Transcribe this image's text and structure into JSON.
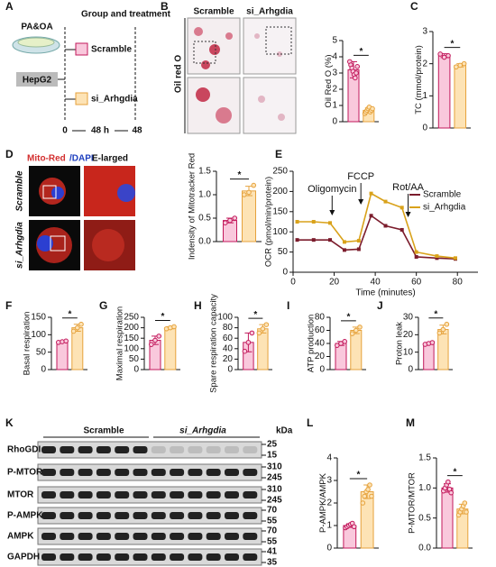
{
  "panels": [
    "A",
    "B",
    "C",
    "D",
    "E",
    "F",
    "G",
    "H",
    "I",
    "J",
    "K",
    "L",
    "M"
  ],
  "schematic": {
    "treatment": "PA&OA",
    "cells": "HepG2",
    "title": "Group and treatment",
    "groups": [
      "Scramble",
      "si_Arhgdia"
    ],
    "timeline": [
      "0",
      "48 h",
      "48"
    ]
  },
  "images_b": {
    "columns": [
      "Scramble",
      "si_Arhgdia"
    ],
    "stain": "Oil red O"
  },
  "images_d": {
    "stains": [
      "Mito-Red",
      "/DAPI"
    ],
    "zoom": "E-larged",
    "rows": [
      "Scramble",
      "si_Arhgdia"
    ]
  },
  "blot": {
    "groups": [
      "Scramble",
      "si_Arhgdia"
    ],
    "unit": "kDa",
    "rows": [
      {
        "label": "RhoGDI",
        "kda": [
          "25",
          "15"
        ]
      },
      {
        "label": "P-MTOR",
        "kda": [
          "310",
          "245"
        ]
      },
      {
        "label": "MTOR",
        "kda": [
          "310",
          "245"
        ]
      },
      {
        "label": "P-AMPK",
        "kda": [
          "70",
          "55"
        ]
      },
      {
        "label": "AMPK",
        "kda": [
          "70",
          "55"
        ]
      },
      {
        "label": "GAPDH",
        "kda": [
          "41",
          "35"
        ]
      }
    ]
  },
  "chart_data": [
    {
      "type": "bar",
      "ylabel": "Oil Red O (%)",
      "ylim": [
        0,
        5
      ],
      "yticks": [
        0,
        1,
        2,
        3,
        4,
        5
      ],
      "values": [
        3.2,
        0.7
      ],
      "errors": [
        0.5,
        0.15
      ],
      "points": [
        [
          3.7,
          3.5,
          3.3,
          3.1,
          2.9,
          2.7,
          3.0,
          3.4
        ],
        [
          0.5,
          0.6,
          0.7,
          0.8,
          0.9,
          0.6,
          0.7,
          0.8
        ]
      ],
      "colors": [
        "#f9c8dc",
        "#fde3b5"
      ],
      "edge_colors": [
        "#c2185b",
        "#e6a23c"
      ],
      "annotation": "*"
    },
    {
      "type": "bar",
      "ylabel": "TC (mmol/protein)",
      "ylim": [
        0,
        3
      ],
      "yticks": [
        0,
        1,
        2,
        3
      ],
      "values": [
        2.25,
        1.95
      ],
      "errors": [
        0.06,
        0.05
      ],
      "points": [
        [
          2.3,
          2.2,
          2.25
        ],
        [
          1.9,
          1.95,
          2.0
        ]
      ],
      "colors": [
        "#f9c8dc",
        "#fde3b5"
      ],
      "edge_colors": [
        "#c2185b",
        "#e6a23c"
      ],
      "annotation": "*"
    },
    {
      "type": "bar",
      "ylabel": "Indensity of Mitotracker Red",
      "ylim": [
        0,
        1.5
      ],
      "yticks": [
        {
          "value": 0,
          "label": "0.0"
        },
        0.5,
        {
          "value": 1,
          "label": "1.0"
        },
        1.5
      ],
      "values": [
        0.45,
        1.08
      ],
      "errors": [
        0.05,
        0.1
      ],
      "points": [
        [
          0.4,
          0.45,
          0.5
        ],
        [
          1.0,
          1.05,
          1.2
        ]
      ],
      "colors": [
        "#f9c8dc",
        "#fde3b5"
      ],
      "edge_colors": [
        "#c2185b",
        "#e6a23c"
      ],
      "annotation": "*"
    },
    {
      "type": "line",
      "ylabel": "OCR (pmol/min/protein)",
      "xlabel": "Time (minutes)",
      "xlim": [
        0,
        90
      ],
      "xticks": [
        0,
        20,
        40,
        60,
        80
      ],
      "ylim": [
        0,
        250
      ],
      "yticks": [
        0,
        50,
        100,
        150,
        200,
        250
      ],
      "x": [
        2,
        10,
        18,
        25,
        32,
        38,
        45,
        53,
        60,
        70,
        79
      ],
      "series": [
        {
          "name": "Scramble",
          "color": "#7b1c2c",
          "values": [
            80,
            80,
            80,
            55,
            57,
            140,
            115,
            105,
            38,
            35,
            33
          ]
        },
        {
          "name": "si_Arhgdia",
          "color": "#d9a21b",
          "values": [
            125,
            125,
            122,
            75,
            78,
            195,
            175,
            160,
            50,
            40,
            35
          ]
        }
      ],
      "annotations": [
        {
          "text": "Oligomycin",
          "x": 19
        },
        {
          "text": "FCCP",
          "x": 33
        },
        {
          "text": "Rot/AA",
          "x": 56
        }
      ],
      "legend": "upper right"
    },
    {
      "type": "bar",
      "ylabel": "Basal respiration",
      "ylim": [
        0,
        150
      ],
      "yticks": [
        0,
        50,
        100,
        150
      ],
      "values": [
        80,
        120
      ],
      "errors": [
        2,
        10
      ],
      "points": [
        [
          78,
          80,
          82
        ],
        [
          110,
          120,
          130
        ]
      ],
      "colors": [
        "#f9c8dc",
        "#fde3b5"
      ],
      "edge_colors": [
        "#c2185b",
        "#e6a23c"
      ],
      "annotation": "*"
    },
    {
      "type": "bar",
      "ylabel": "Maximal respiration",
      "ylim": [
        0,
        250
      ],
      "yticks": [
        0,
        50,
        100,
        150,
        200,
        250
      ],
      "values": [
        140,
        200
      ],
      "errors": [
        20,
        5
      ],
      "points": [
        [
          120,
          140,
          160
        ],
        [
          195,
          200,
          205
        ]
      ],
      "colors": [
        "#f9c8dc",
        "#fde3b5"
      ],
      "edge_colors": [
        "#c2185b",
        "#e6a23c"
      ],
      "annotation": "*"
    },
    {
      "type": "bar",
      "ylabel": "Spare respiration capacity",
      "ylim": [
        0,
        100
      ],
      "yticks": [
        0,
        20,
        40,
        60,
        80,
        100
      ],
      "values": [
        52,
        78
      ],
      "errors": [
        18,
        8
      ],
      "points": [
        [
          35,
          52,
          70
        ],
        [
          70,
          78,
          86
        ]
      ],
      "colors": [
        "#f9c8dc",
        "#fde3b5"
      ],
      "edge_colors": [
        "#c2185b",
        "#e6a23c"
      ],
      "annotation": "*"
    },
    {
      "type": "bar",
      "ylabel": "ATP production",
      "ylim": [
        0,
        80
      ],
      "yticks": [
        0,
        20,
        40,
        60,
        80
      ],
      "values": [
        40,
        60
      ],
      "errors": [
        3,
        5
      ],
      "points": [
        [
          37,
          40,
          43
        ],
        [
          55,
          60,
          65
        ]
      ],
      "colors": [
        "#f9c8dc",
        "#fde3b5"
      ],
      "edge_colors": [
        "#c2185b",
        "#e6a23c"
      ],
      "annotation": "*"
    },
    {
      "type": "bar",
      "ylabel": "Proton leak",
      "ylim": [
        0,
        30
      ],
      "yticks": [
        0,
        10,
        20,
        30
      ],
      "values": [
        15,
        23
      ],
      "errors": [
        0.5,
        2.5
      ],
      "points": [
        [
          14.5,
          15,
          15.5
        ],
        [
          21,
          23,
          26
        ]
      ],
      "colors": [
        "#f9c8dc",
        "#fde3b5"
      ],
      "edge_colors": [
        "#c2185b",
        "#e6a23c"
      ],
      "annotation": "*"
    },
    {
      "type": "bar",
      "ylabel": "P-AMPK/AMPK",
      "ylim": [
        0,
        4
      ],
      "yticks": [
        0,
        1,
        2,
        3,
        4
      ],
      "values": [
        1.0,
        2.5
      ],
      "errors": [
        0.08,
        0.3
      ],
      "points": [
        [
          0.9,
          0.95,
          1.0,
          1.05,
          1.1,
          0.95
        ],
        [
          2.0,
          2.3,
          2.5,
          2.6,
          2.8,
          2.3
        ]
      ],
      "colors": [
        "#f9c8dc",
        "#fde3b5"
      ],
      "edge_colors": [
        "#c2185b",
        "#e6a23c"
      ],
      "annotation": "*"
    },
    {
      "type": "bar",
      "ylabel": "P-MTOR/MTOR",
      "ylim": [
        0,
        1.5
      ],
      "yticks": [
        {
          "value": 0,
          "label": "0.0"
        },
        0.5,
        {
          "value": 1,
          "label": "1.0"
        },
        1.5
      ],
      "values": [
        1.0,
        0.65
      ],
      "errors": [
        0.07,
        0.08
      ],
      "points": [
        [
          0.95,
          1.0,
          1.05,
          1.1,
          0.98,
          0.92
        ],
        [
          0.55,
          0.6,
          0.65,
          0.7,
          0.75,
          0.6
        ]
      ],
      "colors": [
        "#f9c8dc",
        "#fde3b5"
      ],
      "edge_colors": [
        "#c2185b",
        "#e6a23c"
      ],
      "annotation": "*"
    }
  ]
}
